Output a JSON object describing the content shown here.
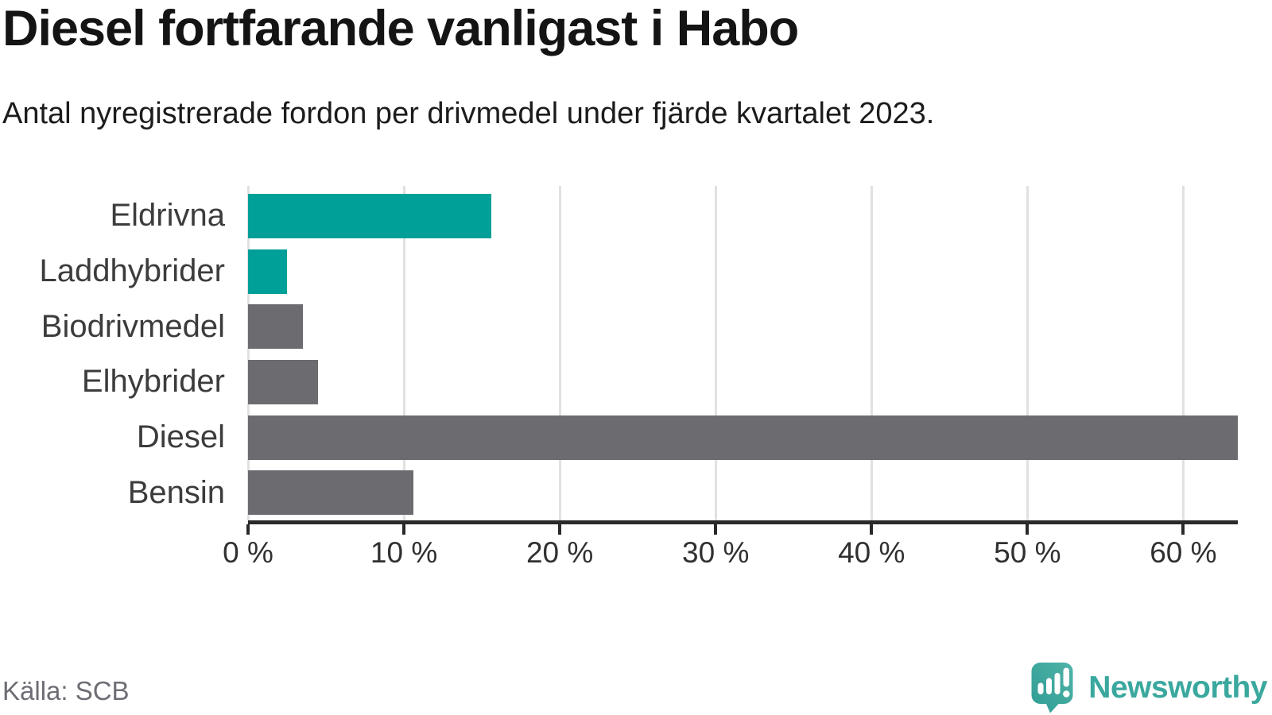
{
  "chart_data": {
    "type": "bar",
    "orientation": "horizontal",
    "title": "Diesel fortfarande vanligast i Habo",
    "subtitle": "Antal nyregistrerade fordon per drivmedel under fjärde kvartalet 2023.",
    "xlabel": "",
    "ylabel": "",
    "unit": "%",
    "categories": [
      "Eldrivna",
      "Laddhybrider",
      "Biodrivmedel",
      "Elhybrider",
      "Diesel",
      "Bensin"
    ],
    "values": [
      15.6,
      2.5,
      3.5,
      4.5,
      63.5,
      10.6
    ],
    "bar_colors": [
      "#009f98",
      "#009f98",
      "#6c6b70",
      "#6c6b70",
      "#6c6b70",
      "#6c6b70"
    ],
    "xlim": [
      0,
      63.5
    ],
    "xticks": [
      0,
      10,
      20,
      30,
      40,
      50,
      60
    ],
    "xtick_labels": [
      "0 %",
      "10 %",
      "20 %",
      "30 %",
      "40 %",
      "50 %",
      "60 %"
    ],
    "grid": true,
    "legend": false
  },
  "footer": {
    "source": "Källa: SCB",
    "brand": "Newsworthy"
  },
  "colors": {
    "accent_teal": "#009f98",
    "bar_gray": "#6c6b70",
    "gridline": "#e1e1e1",
    "axis": "#2a2a2a",
    "logo_teal": "#3aa89e",
    "logo_gradient_start": "#2f9c93",
    "logo_gradient_end": "#4fb3a8"
  }
}
